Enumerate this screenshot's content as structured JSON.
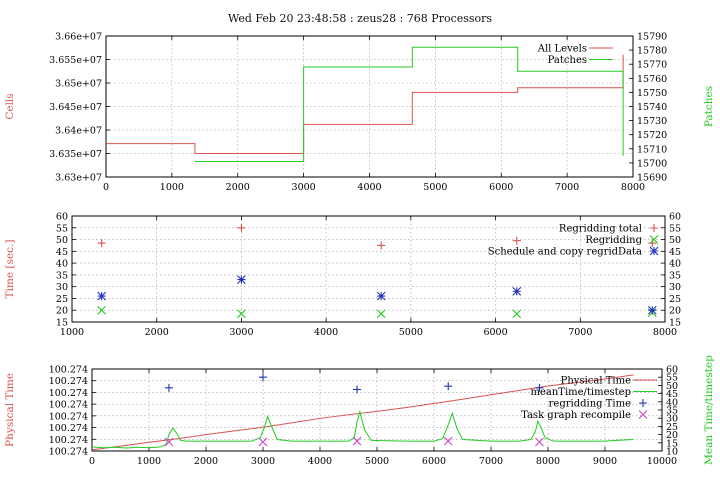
{
  "title": "Wed Feb 20 23:48:58 : zeus28 : 768 Processors",
  "colors": {
    "red": "#d9534f",
    "green": "#22cc22",
    "blue": "#2233bb",
    "magenta": "#cc44cc",
    "grid": "#9a9a9a"
  },
  "chart_data": [
    {
      "type": "line",
      "ylabel": "Cells",
      "y2label": "Patches",
      "xlim": [
        0,
        8000
      ],
      "ylim": [
        36300000,
        36600000
      ],
      "y2lim": [
        15690,
        15790
      ],
      "xticks": [
        0,
        1000,
        2000,
        3000,
        4000,
        5000,
        6000,
        7000,
        8000
      ],
      "yticks": [
        36300000,
        36350000,
        36400000,
        36450000,
        36500000,
        36550000,
        36600000
      ],
      "ytick_labels": [
        "3.63e+07",
        "3.635e+07",
        "3.64e+07",
        "3.645e+07",
        "3.65e+07",
        "3.655e+07",
        "3.66e+07"
      ],
      "y2ticks": [
        15690,
        15700,
        15710,
        15720,
        15730,
        15740,
        15750,
        15760,
        15770,
        15780,
        15790
      ],
      "grid": true,
      "legend": "top-right",
      "series": [
        {
          "name": "All Levels",
          "axis": "y",
          "color": "#d9534f",
          "step": true,
          "x": [
            0,
            1350,
            3000,
            4650,
            6250,
            7850,
            7850
          ],
          "y": [
            36371000,
            36350000,
            36412000,
            36480000,
            36490000,
            36490000,
            36560000
          ]
        },
        {
          "name": "Patches",
          "axis": "y2",
          "color": "#22cc22",
          "step": true,
          "x": [
            1350,
            3000,
            4650,
            6250,
            7850,
            7850
          ],
          "y": [
            15701,
            15768,
            15782,
            15765,
            15765,
            15705
          ]
        }
      ]
    },
    {
      "type": "scatter",
      "ylabel": "Time [sec.]",
      "xlim": [
        1000,
        8000
      ],
      "ylim": [
        15,
        60
      ],
      "y2lim": [
        15,
        60
      ],
      "xticks": [
        1000,
        2000,
        3000,
        4000,
        5000,
        6000,
        7000,
        8000
      ],
      "yticks": [
        15,
        20,
        25,
        30,
        35,
        40,
        45,
        50,
        55,
        60
      ],
      "y2ticks": [
        15,
        20,
        25,
        30,
        35,
        40,
        45,
        50,
        55,
        60
      ],
      "grid": true,
      "legend": "top-right",
      "series": [
        {
          "name": "Regridding total",
          "marker": "plus",
          "color": "#d9534f",
          "x": [
            1350,
            3000,
            4650,
            6250,
            7850
          ],
          "y": [
            48.5,
            55,
            47.5,
            49.5,
            48.5
          ]
        },
        {
          "name": "Regridding",
          "marker": "x",
          "color": "#22cc22",
          "x": [
            1350,
            3000,
            4650,
            6250,
            7850
          ],
          "y": [
            20,
            18.5,
            18.5,
            18.5,
            19
          ]
        },
        {
          "name": "Schedule and copy regridData",
          "marker": "star",
          "color": "#2233bb",
          "x": [
            1350,
            3000,
            4650,
            6250,
            7850
          ],
          "y": [
            26,
            33,
            26,
            28,
            20
          ]
        }
      ]
    },
    {
      "type": "line",
      "ylabel": "Physical Time",
      "y2label": "Mean Time/timestep",
      "xlim": [
        0,
        10000
      ],
      "ylim": [
        0,
        7
      ],
      "y2lim": [
        10,
        60
      ],
      "xticks": [
        0,
        1000,
        2000,
        3000,
        4000,
        5000,
        6000,
        7000,
        8000,
        9000,
        10000
      ],
      "yticks": [
        0,
        1,
        2,
        3,
        4,
        5,
        6,
        7
      ],
      "ytick_labels": [
        "100.274",
        "100.274",
        "100.274",
        "100.274",
        "100.274",
        "100.274",
        "100.274",
        "100.274"
      ],
      "y2ticks": [
        10,
        15,
        20,
        25,
        30,
        35,
        40,
        45,
        50,
        55,
        60
      ],
      "grid": true,
      "legend": "top-right",
      "series": [
        {
          "name": "Physical Time",
          "axis": "y",
          "color": "#d9534f",
          "x": [
            0,
            500,
            1000,
            1500,
            2000,
            2500,
            3000,
            3500,
            4000,
            4500,
            5000,
            5500,
            6000,
            6500,
            7000,
            7500,
            8000,
            8500,
            9000,
            9500
          ],
          "y": [
            0.1,
            0.42,
            0.75,
            1.05,
            1.4,
            1.72,
            2.03,
            2.4,
            2.78,
            3.1,
            3.38,
            3.7,
            4.05,
            4.42,
            4.8,
            5.18,
            5.55,
            5.85,
            6.15,
            6.5
          ]
        },
        {
          "name": "meanTime/timestep",
          "axis": "y2",
          "color": "#22cc22",
          "x": [
            0,
            200,
            400,
            600,
            800,
            1000,
            1200,
            1300,
            1350,
            1420,
            1500,
            1550,
            1650,
            2000,
            2400,
            2800,
            2950,
            3030,
            3080,
            3150,
            3250,
            3500,
            4000,
            4500,
            4600,
            4650,
            4700,
            4780,
            4900,
            5500,
            6000,
            6150,
            6250,
            6320,
            6400,
            6500,
            7000,
            7500,
            7700,
            7780,
            7820,
            7870,
            7950,
            8100,
            8500,
            9000,
            9200,
            9500
          ],
          "y": [
            12.5,
            12,
            12.3,
            11.8,
            12.3,
            12,
            12.5,
            14,
            20,
            24,
            20,
            16.5,
            16,
            16,
            16,
            16,
            18,
            25,
            31,
            25,
            17,
            16,
            16,
            16,
            18,
            28,
            34,
            23,
            16.5,
            16,
            16,
            17.5,
            26,
            33,
            24,
            17,
            16,
            16,
            17,
            22,
            28,
            25,
            18,
            16,
            16,
            16,
            16.5,
            17
          ]
        },
        {
          "name": "regridding Time",
          "axis": "y2",
          "marker": "plus",
          "color": "#2233bb",
          "x": [
            1350,
            3000,
            4650,
            6250,
            7850
          ],
          "y": [
            48.5,
            55,
            47.5,
            49.5,
            48.5
          ]
        },
        {
          "name": "Task graph recompile",
          "axis": "y2",
          "marker": "x",
          "color": "#cc44cc",
          "x": [
            1350,
            3000,
            4650,
            6250,
            7850
          ],
          "y": [
            15.5,
            15.5,
            16,
            16,
            15.5
          ]
        }
      ]
    }
  ]
}
